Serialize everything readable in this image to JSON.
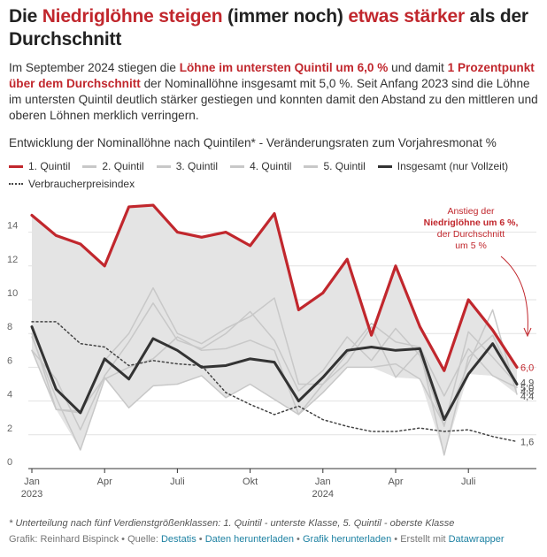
{
  "headline": {
    "p1": "Die ",
    "p2": "Niedriglöhne steigen",
    "p3": " (immer noch) ",
    "p4": "etwas stärker",
    "p5": " als der Durchschnitt"
  },
  "intro": {
    "t1": "Im September 2024 stiegen die ",
    "b1": "Löhne im untersten Quintil um 6,0 %",
    "t2": " und damit ",
    "b2": "1 Prozentpunkt über dem Durchschnitt",
    "t3": " der Nominallöhne insgesamt mit 5,0 %. Seit Anfang 2023 sind die Löhne im untersten Quintil deutlich stärker gestiegen und konnten damit den Abstand zu den mittleren und oberen Löhnen merklich verringern."
  },
  "subtitle": "Entwicklung der Nominallöhne nach Quintilen* - Veränderungsraten zum Vorjahresmonat %",
  "colors": {
    "q1": "#c1272d",
    "quintiles": "#c8c8c8",
    "total": "#333333",
    "cpi": "#444444",
    "area": "#e4e4e4",
    "link": "#1d81a2"
  },
  "chart_data": {
    "type": "line",
    "x": [
      "2023-01",
      "2023-02",
      "2023-03",
      "2023-04",
      "2023-05",
      "2023-06",
      "2023-07",
      "2023-08",
      "2023-09",
      "2023-10",
      "2023-11",
      "2023-12",
      "2024-01",
      "2024-02",
      "2024-03",
      "2024-04",
      "2024-05",
      "2024-06",
      "2024-07",
      "2024-08",
      "2024-09"
    ],
    "x_ticks": [
      {
        "i": 0,
        "label": "Jan",
        "sub": "2023"
      },
      {
        "i": 3,
        "label": "Apr",
        "sub": ""
      },
      {
        "i": 6,
        "label": "Juli",
        "sub": ""
      },
      {
        "i": 9,
        "label": "Okt",
        "sub": ""
      },
      {
        "i": 12,
        "label": "Jan",
        "sub": "2024"
      },
      {
        "i": 15,
        "label": "Apr",
        "sub": ""
      },
      {
        "i": 18,
        "label": "Juli",
        "sub": ""
      }
    ],
    "ylim": [
      0,
      16
    ],
    "y_ticks": [
      0,
      2,
      4,
      6,
      8,
      10,
      12,
      14
    ],
    "grid": true,
    "legend_position": "top",
    "shaded_area_between": [
      "1. Quintil",
      "min of other series"
    ],
    "series": [
      {
        "name": "1. Quintil",
        "key": "q1",
        "values": [
          15.0,
          13.8,
          13.3,
          12.0,
          15.5,
          15.6,
          14.0,
          13.7,
          14.0,
          13.2,
          15.1,
          9.4,
          10.4,
          12.4,
          7.9,
          12.0,
          8.4,
          5.8,
          10.0,
          8.2,
          6.0
        ],
        "end_label": "6,0"
      },
      {
        "name": "2. Quintil",
        "key": "q2",
        "values": [
          7.0,
          5.3,
          2.3,
          5.5,
          7.5,
          9.8,
          7.6,
          7.1,
          8.0,
          9.3,
          7.6,
          4.6,
          5.8,
          7.8,
          6.4,
          8.3,
          6.7,
          2.5,
          8.1,
          6.6,
          5.0
        ],
        "end_label": "5,0"
      },
      {
        "name": "3. Quintil",
        "key": "q3",
        "values": [
          8.0,
          3.5,
          3.3,
          6.4,
          8.0,
          10.7,
          8.0,
          7.4,
          8.3,
          9.0,
          10.1,
          5.0,
          5.0,
          6.8,
          8.6,
          7.5,
          7.2,
          4.3,
          7.1,
          5.5,
          4.8
        ],
        "end_label": "4,8"
      },
      {
        "name": "4. Quintil",
        "key": "q4",
        "values": [
          7.8,
          4.2,
          1.1,
          5.3,
          6.0,
          6.5,
          7.8,
          7.0,
          7.1,
          7.6,
          7.0,
          3.2,
          5.0,
          6.3,
          8.4,
          5.4,
          7.0,
          0.8,
          6.6,
          7.9,
          4.9
        ],
        "end_label": "4,9"
      },
      {
        "name": "5. Quintil",
        "key": "q5",
        "values": [
          7.0,
          3.5,
          3.4,
          5.4,
          3.6,
          4.9,
          5.0,
          5.5,
          4.2,
          5.0,
          4.1,
          3.2,
          4.5,
          6.0,
          6.0,
          6.2,
          5.3,
          2.6,
          6.2,
          9.4,
          4.4
        ],
        "end_label": "4,4"
      },
      {
        "name": "Insgesamt (nur Vollzeit)",
        "key": "total",
        "values": [
          8.4,
          4.7,
          3.3,
          6.5,
          5.3,
          7.7,
          7.0,
          6.0,
          6.1,
          6.5,
          6.3,
          4.0,
          5.4,
          7.0,
          7.2,
          7.0,
          7.1,
          2.9,
          5.6,
          7.4,
          5.0
        ],
        "end_label": "5,0"
      },
      {
        "name": "Verbraucherpreisindex",
        "key": "cpi",
        "values": [
          8.7,
          8.7,
          7.4,
          7.2,
          6.1,
          6.4,
          6.2,
          6.1,
          4.5,
          3.8,
          3.2,
          3.7,
          2.9,
          2.5,
          2.2,
          2.2,
          2.4,
          2.2,
          2.3,
          1.9,
          1.6
        ],
        "end_label": "1,6"
      }
    ],
    "annotation": {
      "line1": "Anstieg der",
      "line2": "Niedriglöhne um 6 %,",
      "line3": "der Durchschnitt",
      "line4": "um 5 %"
    }
  },
  "footnote": "* Unterteilung nach fünf Verdienstgrößenklassen: 1. Quintil - unterste Klasse, 5. Quintil - oberste Klasse",
  "source": {
    "grafik": "Grafik: Reinhard Bispinck",
    "sep1": " • Quelle: ",
    "quelle": "Destatis",
    "sep2": " • ",
    "daten": "Daten herunterladen",
    "grafik_dl": "Grafik herunterladen",
    "sep3": " • Erstellt mit ",
    "tool": "Datawrapper"
  }
}
